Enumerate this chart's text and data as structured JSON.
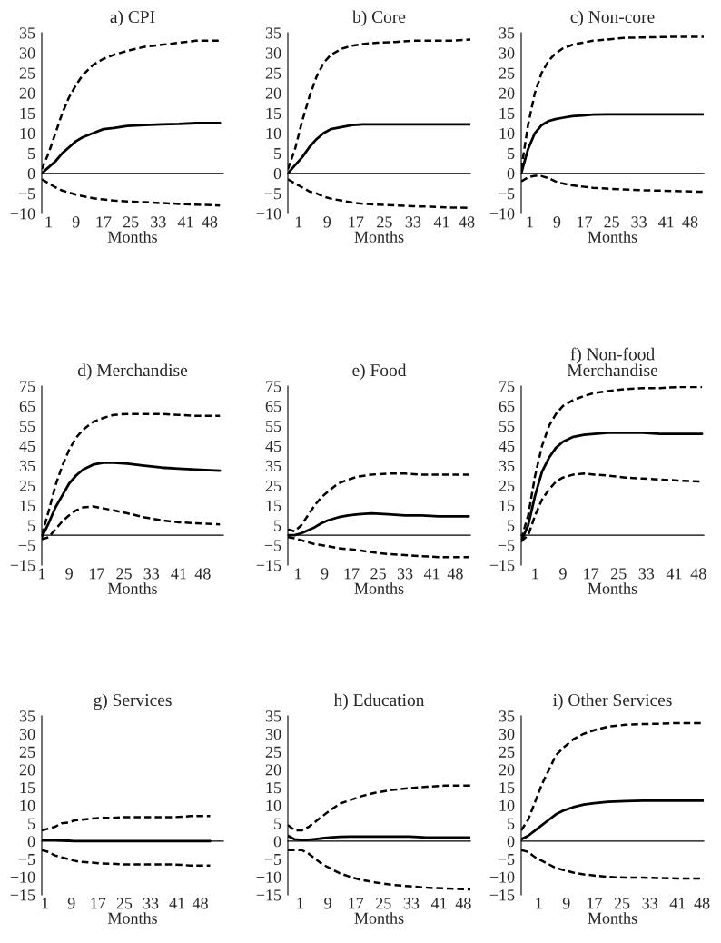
{
  "chart_data": [
    {
      "type": "line",
      "title": "a) CPI",
      "xlabel": "Months",
      "xlim": [
        -1,
        52
      ],
      "xticks": [
        1,
        9,
        17,
        25,
        33,
        41,
        48
      ],
      "ylim": [
        -10,
        35
      ],
      "yticks": [
        -10,
        -5,
        0,
        5,
        10,
        15,
        20,
        25,
        30,
        35
      ],
      "x": [
        -1,
        1,
        3,
        5,
        7,
        9,
        11,
        14,
        17,
        20,
        24,
        29,
        34,
        39,
        44,
        51
      ],
      "series": [
        {
          "color": "#000000",
          "line_style": "dashed",
          "values": [
            1,
            5,
            10,
            15,
            19,
            22,
            24.5,
            27,
            28.5,
            29.5,
            30.5,
            31.5,
            32,
            32.5,
            33,
            33
          ]
        },
        {
          "color": "#000000",
          "line_style": "solid",
          "values": [
            0,
            1.5,
            3,
            5,
            6.5,
            8,
            9,
            10,
            11,
            11.3,
            11.8,
            12,
            12.2,
            12.3,
            12.5,
            12.5
          ]
        },
        {
          "color": "#000000",
          "line_style": "dashed",
          "values": [
            -1.5,
            -2.5,
            -3.5,
            -4.3,
            -4.8,
            -5.3,
            -5.7,
            -6.2,
            -6.5,
            -6.8,
            -7,
            -7.2,
            -7.4,
            -7.6,
            -7.8,
            -8
          ]
        }
      ]
    },
    {
      "type": "line",
      "title": "b) Core",
      "xlabel": "Months",
      "xlim": [
        -2,
        49
      ],
      "xticks": [
        1,
        9,
        17,
        25,
        33,
        41,
        48
      ],
      "ylim": [
        -10,
        35
      ],
      "yticks": [
        -10,
        -5,
        0,
        5,
        10,
        15,
        20,
        25,
        30,
        35
      ],
      "x": [
        -2,
        0,
        2,
        4,
        6,
        8,
        10,
        13,
        16,
        19,
        23,
        28,
        33,
        38,
        43,
        49
      ],
      "series": [
        {
          "color": "#000000",
          "line_style": "dashed",
          "values": [
            1,
            6,
            13,
            19,
            24,
            27.5,
            29.5,
            31,
            31.8,
            32.2,
            32.5,
            32.7,
            33,
            33,
            33,
            33.3
          ]
        },
        {
          "color": "#000000",
          "line_style": "solid",
          "values": [
            0,
            2,
            4,
            6.5,
            8.5,
            10,
            11,
            11.5,
            12,
            12.2,
            12.2,
            12.2,
            12.2,
            12.2,
            12.2,
            12.2
          ]
        },
        {
          "color": "#000000",
          "line_style": "dashed",
          "values": [
            -1.5,
            -2.5,
            -3.5,
            -4.5,
            -5,
            -5.8,
            -6.3,
            -6.8,
            -7.3,
            -7.6,
            -7.8,
            -8,
            -8.2,
            -8.3,
            -8.5,
            -8.6
          ]
        }
      ]
    },
    {
      "type": "line",
      "title": "c) Non-core",
      "xlabel": "Months",
      "xlim": [
        -1.5,
        52
      ],
      "xticks": [
        1,
        9,
        17,
        25,
        33,
        41,
        48
      ],
      "ylim": [
        -10,
        35
      ],
      "yticks": [
        -10,
        -5,
        0,
        5,
        10,
        15,
        20,
        25,
        30,
        35
      ],
      "x": [
        -1.5,
        0.5,
        2.5,
        4.5,
        6.5,
        8.5,
        10.5,
        13.5,
        16.5,
        19.5,
        23.5,
        28.5,
        33.5,
        38.5,
        43.5,
        52
      ],
      "series": [
        {
          "color": "#000000",
          "line_style": "dashed",
          "values": [
            1,
            12,
            20,
            25,
            28,
            29.8,
            31,
            32,
            32.5,
            33,
            33.3,
            33.7,
            33.8,
            33.9,
            34,
            34
          ]
        },
        {
          "color": "#000000",
          "line_style": "solid",
          "values": [
            0,
            6,
            10,
            12,
            13,
            13.5,
            13.8,
            14.2,
            14.4,
            14.6,
            14.7,
            14.7,
            14.7,
            14.7,
            14.7,
            14.7
          ]
        },
        {
          "color": "#000000",
          "line_style": "dashed",
          "values": [
            -2,
            -1,
            -0.6,
            -0.7,
            -1.2,
            -2,
            -2.5,
            -3,
            -3.3,
            -3.6,
            -3.8,
            -4,
            -4.2,
            -4.3,
            -4.4,
            -4.6
          ]
        }
      ]
    },
    {
      "type": "line",
      "title": "d) Merchandise",
      "xlabel": "Months",
      "xlim": [
        1,
        54
      ],
      "xticks": [
        1,
        9,
        17,
        25,
        33,
        41,
        48
      ],
      "ylim": [
        -15,
        75
      ],
      "yticks": [
        -15,
        -5,
        5,
        15,
        25,
        35,
        45,
        55,
        65,
        75
      ],
      "x": [
        1,
        3,
        5,
        7,
        9,
        11,
        13,
        16,
        19,
        22,
        26,
        31,
        36,
        41,
        46,
        53
      ],
      "series": [
        {
          "color": "#000000",
          "line_style": "dashed",
          "values": [
            0,
            12,
            25,
            35,
            43,
            49,
            53,
            57,
            59,
            60.5,
            61,
            61,
            61,
            60.5,
            60,
            60
          ]
        },
        {
          "color": "#000000",
          "line_style": "solid",
          "values": [
            -1,
            6,
            14,
            20,
            26,
            30,
            33,
            35.5,
            36.5,
            36.5,
            36,
            35,
            34,
            33.5,
            33,
            32.5
          ]
        },
        {
          "color": "#000000",
          "line_style": "dashed",
          "values": [
            -2,
            -1,
            3,
            7,
            10,
            12.5,
            14,
            14.5,
            13.5,
            12.5,
            11,
            9,
            7.5,
            6.5,
            6,
            5.5
          ]
        }
      ]
    },
    {
      "type": "line",
      "title": "e) Food",
      "xlabel": "Months",
      "xlim": [
        -2,
        52.5
      ],
      "xticks": [
        1,
        9,
        17,
        25,
        33,
        41,
        48
      ],
      "ylim": [
        -15,
        75
      ],
      "yticks": [
        -15,
        -5,
        5,
        15,
        25,
        35,
        45,
        55,
        65,
        75
      ],
      "x": [
        -2,
        0,
        2,
        4,
        6,
        8,
        10,
        13,
        16,
        19,
        23,
        28,
        33,
        38,
        43,
        52
      ],
      "series": [
        {
          "color": "#000000",
          "line_style": "dashed",
          "values": [
            3,
            2,
            5,
            10,
            15,
            19,
            22,
            26,
            28,
            29.5,
            30.5,
            31,
            31,
            30.5,
            30.5,
            30.5
          ]
        },
        {
          "color": "#000000",
          "line_style": "solid",
          "values": [
            0,
            0,
            1,
            2.5,
            4,
            6,
            7.5,
            9,
            10,
            10.5,
            11,
            10.5,
            10,
            10,
            9.5,
            9.5
          ]
        },
        {
          "color": "#000000",
          "line_style": "dashed",
          "values": [
            -1,
            -1.5,
            -2.5,
            -3.5,
            -4.5,
            -5,
            -5.5,
            -6.5,
            -7,
            -7.5,
            -8.5,
            -9.5,
            -10,
            -10.5,
            -11,
            -11
          ]
        }
      ]
    },
    {
      "type": "line",
      "title": "f) Non-food\nMerchandise",
      "xlabel": "Months",
      "xlim": [
        -3,
        49.5
      ],
      "xticks": [
        1,
        9,
        17,
        25,
        33,
        41,
        48
      ],
      "ylim": [
        -15,
        75
      ],
      "yticks": [
        -15,
        -5,
        5,
        15,
        25,
        35,
        45,
        55,
        65,
        75
      ],
      "x": [
        -3,
        -1,
        1,
        3,
        5,
        7,
        9,
        12,
        15,
        18,
        22,
        27,
        32,
        37,
        42,
        49
      ],
      "series": [
        {
          "color": "#000000",
          "line_style": "dashed",
          "values": [
            -2,
            10,
            30,
            45,
            55,
            61,
            65,
            68,
            70,
            71.5,
            72.5,
            73.5,
            74,
            74,
            74.5,
            74.5
          ]
        },
        {
          "color": "#000000",
          "line_style": "solid",
          "values": [
            -3,
            5,
            20,
            32,
            39,
            44,
            47,
            49.5,
            50.5,
            51,
            51.5,
            51.5,
            51.5,
            51,
            51,
            51
          ]
        },
        {
          "color": "#000000",
          "line_style": "dashed",
          "values": [
            -3,
            0,
            10,
            18,
            23,
            27,
            29,
            30.5,
            31,
            30.5,
            30,
            29,
            28.5,
            28,
            27.5,
            27
          ]
        }
      ]
    },
    {
      "type": "line",
      "title": "g) Services",
      "xlabel": "Months",
      "xlim": [
        0,
        55
      ],
      "xticks": [
        1,
        9,
        17,
        25,
        33,
        41,
        48
      ],
      "ylim": [
        -15,
        35
      ],
      "yticks": [
        -15,
        -10,
        -5,
        0,
        5,
        10,
        15,
        20,
        25,
        30,
        35
      ],
      "x": [
        0,
        2,
        4,
        6,
        8,
        10,
        12,
        15,
        18,
        21,
        25,
        30,
        35,
        40,
        45,
        51
      ],
      "series": [
        {
          "color": "#000000",
          "line_style": "dashed",
          "values": [
            3,
            3.5,
            4,
            5,
            5.2,
            5.8,
            6,
            6.3,
            6.5,
            6.5,
            6.7,
            6.7,
            6.7,
            6.7,
            7,
            7
          ]
        },
        {
          "color": "#000000",
          "line_style": "solid",
          "values": [
            0.3,
            0.3,
            0.3,
            0.2,
            0.1,
            0,
            0,
            0,
            0,
            0,
            0,
            0,
            0,
            0,
            0,
            0
          ]
        },
        {
          "color": "#000000",
          "line_style": "dashed",
          "values": [
            -2.5,
            -3,
            -4,
            -4.5,
            -5,
            -5.5,
            -5.8,
            -6,
            -6.2,
            -6.3,
            -6.5,
            -6.5,
            -6.5,
            -6.5,
            -6.8,
            -6.8
          ]
        }
      ]
    },
    {
      "type": "line",
      "title": "h) Education",
      "xlabel": "Months",
      "xlim": [
        -2.5,
        50
      ],
      "xticks": [
        1,
        9,
        17,
        25,
        33,
        41,
        48
      ],
      "ylim": [
        -15,
        35
      ],
      "yticks": [
        -15,
        -10,
        -5,
        0,
        5,
        10,
        15,
        20,
        25,
        30,
        35
      ],
      "x": [
        -2.5,
        -0.5,
        1.5,
        3.5,
        5.5,
        7.5,
        9.5,
        12.5,
        15.5,
        18.5,
        22.5,
        27.5,
        32.5,
        37.5,
        42.5,
        50
      ],
      "series": [
        {
          "color": "#000000",
          "line_style": "dashed",
          "values": [
            4.5,
            3,
            3,
            4,
            5.5,
            7,
            8.5,
            10.5,
            11.5,
            12.5,
            13.5,
            14.3,
            14.8,
            15.2,
            15.5,
            15.5
          ]
        },
        {
          "color": "#000000",
          "line_style": "solid",
          "values": [
            1.5,
            0.5,
            0.3,
            0.4,
            0.6,
            0.8,
            1,
            1.2,
            1.3,
            1.3,
            1.3,
            1.3,
            1.3,
            1,
            1,
            1
          ]
        },
        {
          "color": "#000000",
          "line_style": "dashed",
          "values": [
            -2.5,
            -2.5,
            -2.5,
            -3.5,
            -5,
            -6.5,
            -7.5,
            -9,
            -10,
            -10.8,
            -11.5,
            -12.2,
            -12.6,
            -13,
            -13.2,
            -13.5
          ]
        }
      ]
    },
    {
      "type": "line",
      "title": "i) Other Services",
      "xlabel": "Months",
      "xlim": [
        -4,
        48.5
      ],
      "xticks": [
        1,
        9,
        17,
        25,
        33,
        41,
        48
      ],
      "ylim": [
        -15,
        35
      ],
      "yticks": [
        -15,
        -10,
        -5,
        0,
        5,
        10,
        15,
        20,
        25,
        30,
        35
      ],
      "x": [
        -4,
        -2,
        0,
        2,
        4,
        6,
        8,
        11,
        14,
        17,
        21,
        26,
        31,
        36,
        41,
        48.5
      ],
      "series": [
        {
          "color": "#000000",
          "line_style": "dashed",
          "values": [
            3,
            6,
            11,
            16,
            20,
            24,
            26,
            28.5,
            30,
            31,
            32,
            32.5,
            32.7,
            32.8,
            33,
            33
          ]
        },
        {
          "color": "#000000",
          "line_style": "solid",
          "values": [
            0.5,
            1.5,
            3,
            4.5,
            6,
            7.5,
            8.5,
            9.5,
            10.2,
            10.6,
            11,
            11.2,
            11.3,
            11.3,
            11.3,
            11.3
          ]
        },
        {
          "color": "#000000",
          "line_style": "dashed",
          "values": [
            -2.5,
            -3,
            -4.5,
            -5.5,
            -6.5,
            -7.5,
            -8,
            -8.8,
            -9.3,
            -9.6,
            -10,
            -10.2,
            -10.2,
            -10.3,
            -10.4,
            -10.4
          ]
        }
      ]
    }
  ]
}
